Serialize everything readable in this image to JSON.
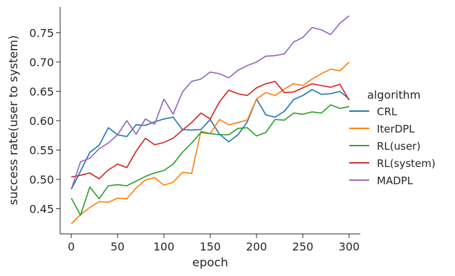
{
  "chart_data": {
    "type": "line",
    "xlabel": "epoch",
    "ylabel": "success rate(user to system)",
    "xlim": [
      -12,
      312
    ],
    "ylim": [
      0.407,
      0.794
    ],
    "xticks": [
      0,
      50,
      100,
      150,
      200,
      250,
      300
    ],
    "yticks": [
      0.45,
      0.5,
      0.55,
      0.6,
      0.65,
      0.7,
      0.75
    ],
    "ytick_labels": [
      "0.45",
      "0.50",
      "0.55",
      "0.60",
      "0.65",
      "0.70",
      "0.75"
    ],
    "grid": false,
    "legend_title": "algorithm",
    "legend_position": "right",
    "x": [
      0,
      10,
      20,
      30,
      40,
      50,
      60,
      70,
      80,
      90,
      100,
      110,
      120,
      130,
      140,
      150,
      160,
      170,
      180,
      190,
      200,
      210,
      220,
      230,
      240,
      250,
      260,
      270,
      280,
      290,
      300
    ],
    "series": [
      {
        "name": "CRL",
        "color": "#1f77b4",
        "values": [
          0.483,
          0.514,
          0.546,
          0.558,
          0.588,
          0.576,
          0.573,
          0.593,
          0.592,
          0.598,
          0.603,
          0.606,
          0.585,
          0.584,
          0.585,
          0.602,
          0.577,
          0.564,
          0.576,
          0.598,
          0.637,
          0.61,
          0.606,
          0.616,
          0.636,
          0.643,
          0.653,
          0.645,
          0.646,
          0.65,
          0.637
        ]
      },
      {
        "name": "IterDPL",
        "color": "#ff7f0e",
        "values": [
          0.424,
          0.44,
          0.452,
          0.462,
          0.461,
          0.468,
          0.467,
          0.485,
          0.499,
          0.503,
          0.49,
          0.495,
          0.512,
          0.51,
          0.582,
          0.578,
          0.602,
          0.593,
          0.597,
          0.601,
          0.637,
          0.648,
          0.643,
          0.654,
          0.663,
          0.66,
          0.671,
          0.68,
          0.688,
          0.685,
          0.7
        ]
      },
      {
        "name": "RL(user)",
        "color": "#2ca02c",
        "values": [
          0.468,
          0.439,
          0.487,
          0.467,
          0.489,
          0.491,
          0.489,
          0.497,
          0.505,
          0.511,
          0.515,
          0.526,
          0.546,
          0.562,
          0.58,
          0.578,
          0.576,
          0.576,
          0.587,
          0.588,
          0.574,
          0.58,
          0.602,
          0.601,
          0.613,
          0.611,
          0.615,
          0.613,
          0.627,
          0.621,
          0.624
        ]
      },
      {
        "name": "RL(system)",
        "color": "#d62728",
        "values": [
          0.504,
          0.507,
          0.511,
          0.501,
          0.516,
          0.526,
          0.52,
          0.548,
          0.57,
          0.559,
          0.563,
          0.57,
          0.584,
          0.597,
          0.613,
          0.603,
          0.632,
          0.652,
          0.646,
          0.643,
          0.656,
          0.663,
          0.667,
          0.648,
          0.649,
          0.656,
          0.663,
          0.66,
          0.657,
          0.662,
          0.635
        ]
      },
      {
        "name": "MADPL",
        "color": "#9467bd",
        "values": [
          0.483,
          0.53,
          0.536,
          0.552,
          0.562,
          0.576,
          0.6,
          0.577,
          0.603,
          0.594,
          0.637,
          0.611,
          0.649,
          0.667,
          0.671,
          0.683,
          0.68,
          0.673,
          0.686,
          0.694,
          0.7,
          0.71,
          0.711,
          0.714,
          0.734,
          0.742,
          0.759,
          0.755,
          0.747,
          0.766,
          0.779
        ]
      }
    ]
  }
}
